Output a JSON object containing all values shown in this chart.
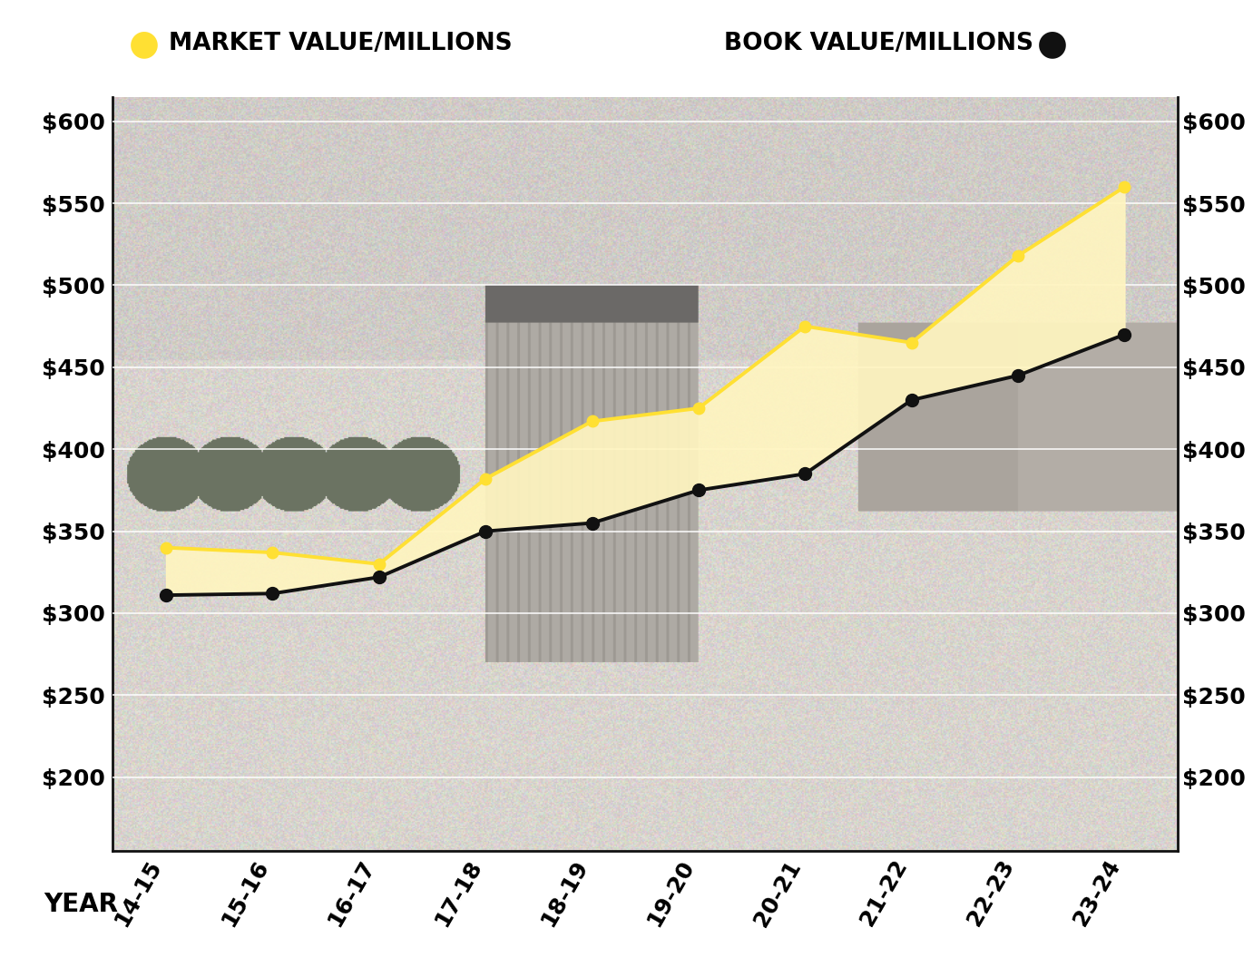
{
  "years": [
    "14-15",
    "15-16",
    "16-17",
    "17-18",
    "18-19",
    "19-20",
    "20-21",
    "21-22",
    "22-23",
    "23-24"
  ],
  "market_value": [
    340,
    337,
    330,
    382,
    417,
    425,
    475,
    465,
    518,
    560
  ],
  "book_value": [
    311,
    312,
    322,
    350,
    355,
    375,
    385,
    430,
    445,
    470
  ],
  "market_color": "#FFE033",
  "book_color": "#111111",
  "fill_color": "#FFF5C0",
  "fill_alpha": 0.92,
  "legend_market": "MARKET VALUE/MILLIONS",
  "legend_book": "BOOK VALUE/MILLIONS",
  "xlabel": "YEAR",
  "ylim_min": 155,
  "ylim_max": 615,
  "yticks": [
    200,
    250,
    300,
    350,
    400,
    450,
    500,
    550,
    600
  ],
  "grid_color": "#cccccc",
  "spine_color": "#111111",
  "title_fontsize": 20,
  "tick_fontsize": 18,
  "label_fontsize": 20,
  "marker_size_market": 9,
  "marker_size_book": 10,
  "line_width": 2.8
}
